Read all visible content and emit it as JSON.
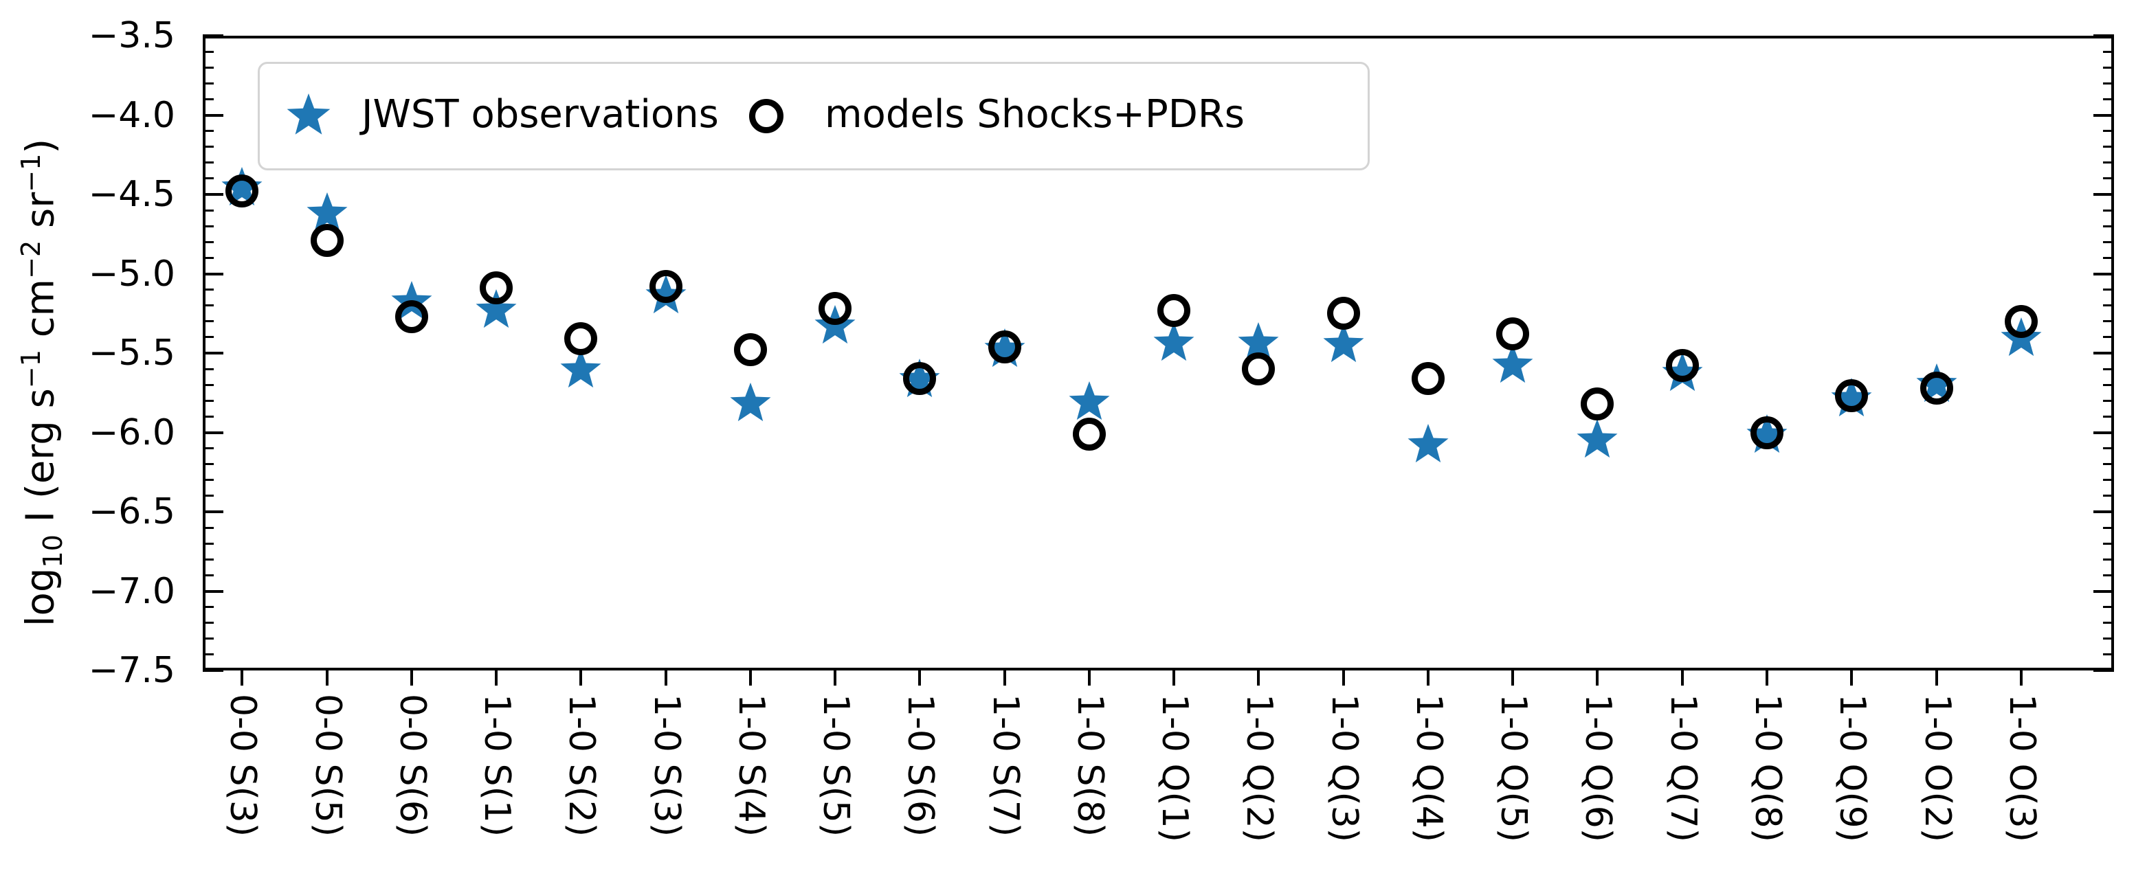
{
  "figure": {
    "background": "#ffffff"
  },
  "legend": {
    "entries": [
      {
        "label": "JWST observations",
        "marker": "star",
        "color": "#1f77b4"
      },
      {
        "label": "models Shocks+PDRs",
        "marker": "open-circle",
        "color": "#000000"
      }
    ]
  },
  "axes": {
    "ylabel_parts": [
      {
        "t": "log"
      },
      {
        "sub": "10"
      },
      {
        "t": " I (erg s"
      },
      {
        "sup": "−1"
      },
      {
        "t": " cm"
      },
      {
        "sup": "−2"
      },
      {
        "t": " sr"
      },
      {
        "sup": "−1"
      },
      {
        "t": ")"
      }
    ],
    "ytick_labels": [
      "−3.5",
      "−4.0",
      "−4.5",
      "−5.0",
      "−5.5",
      "−6.0",
      "−6.5",
      "−7.0",
      "−7.5"
    ],
    "ytick_values": [
      -3.5,
      -4.0,
      -4.5,
      -5.0,
      -5.5,
      -6.0,
      -6.5,
      -7.0,
      -7.5
    ],
    "minor_tick_step": 0.1
  },
  "chart_data": {
    "type": "scatter",
    "title": "",
    "xlabel": "",
    "ylabel": "log10 I (erg s^-1 cm^-2 sr^-1)",
    "ylim": [
      -7.5,
      -3.5
    ],
    "grid": false,
    "legend_position": "upper left",
    "categories": [
      "0-0 S(3)",
      "0-0 S(5)",
      "0-0 S(6)",
      "1-0 S(1)",
      "1-0 S(2)",
      "1-0 S(3)",
      "1-0 S(4)",
      "1-0 S(5)",
      "1-0 S(6)",
      "1-0 S(7)",
      "1-0 S(8)",
      "1-0 Q(1)",
      "1-0 Q(2)",
      "1-0 Q(3)",
      "1-0 Q(4)",
      "1-0 Q(5)",
      "1-0 Q(6)",
      "1-0 Q(7)",
      "1-0 Q(8)",
      "1-0 Q(9)",
      "1-0 O(2)",
      "1-0 O(3)"
    ],
    "series": [
      {
        "name": "JWST observations",
        "marker": "star",
        "color": "#1f77b4",
        "values": [
          -4.46,
          -4.62,
          -5.18,
          -5.23,
          -5.61,
          -5.14,
          -5.82,
          -5.33,
          -5.67,
          -5.48,
          -5.81,
          -5.44,
          -5.44,
          -5.45,
          -6.08,
          -5.58,
          -6.05,
          -5.63,
          -6.02,
          -5.79,
          -5.7,
          -5.41
        ]
      },
      {
        "name": "models Shocks+PDRs",
        "marker": "open-circle",
        "color": "#000000",
        "values": [
          -4.48,
          -4.79,
          -5.27,
          -5.09,
          -5.41,
          -5.08,
          -5.48,
          -5.22,
          -5.66,
          -5.46,
          -6.01,
          -5.23,
          -5.6,
          -5.25,
          -5.66,
          -5.38,
          -5.82,
          -5.58,
          -6.0,
          -5.77,
          -5.72,
          -5.3
        ]
      }
    ]
  }
}
